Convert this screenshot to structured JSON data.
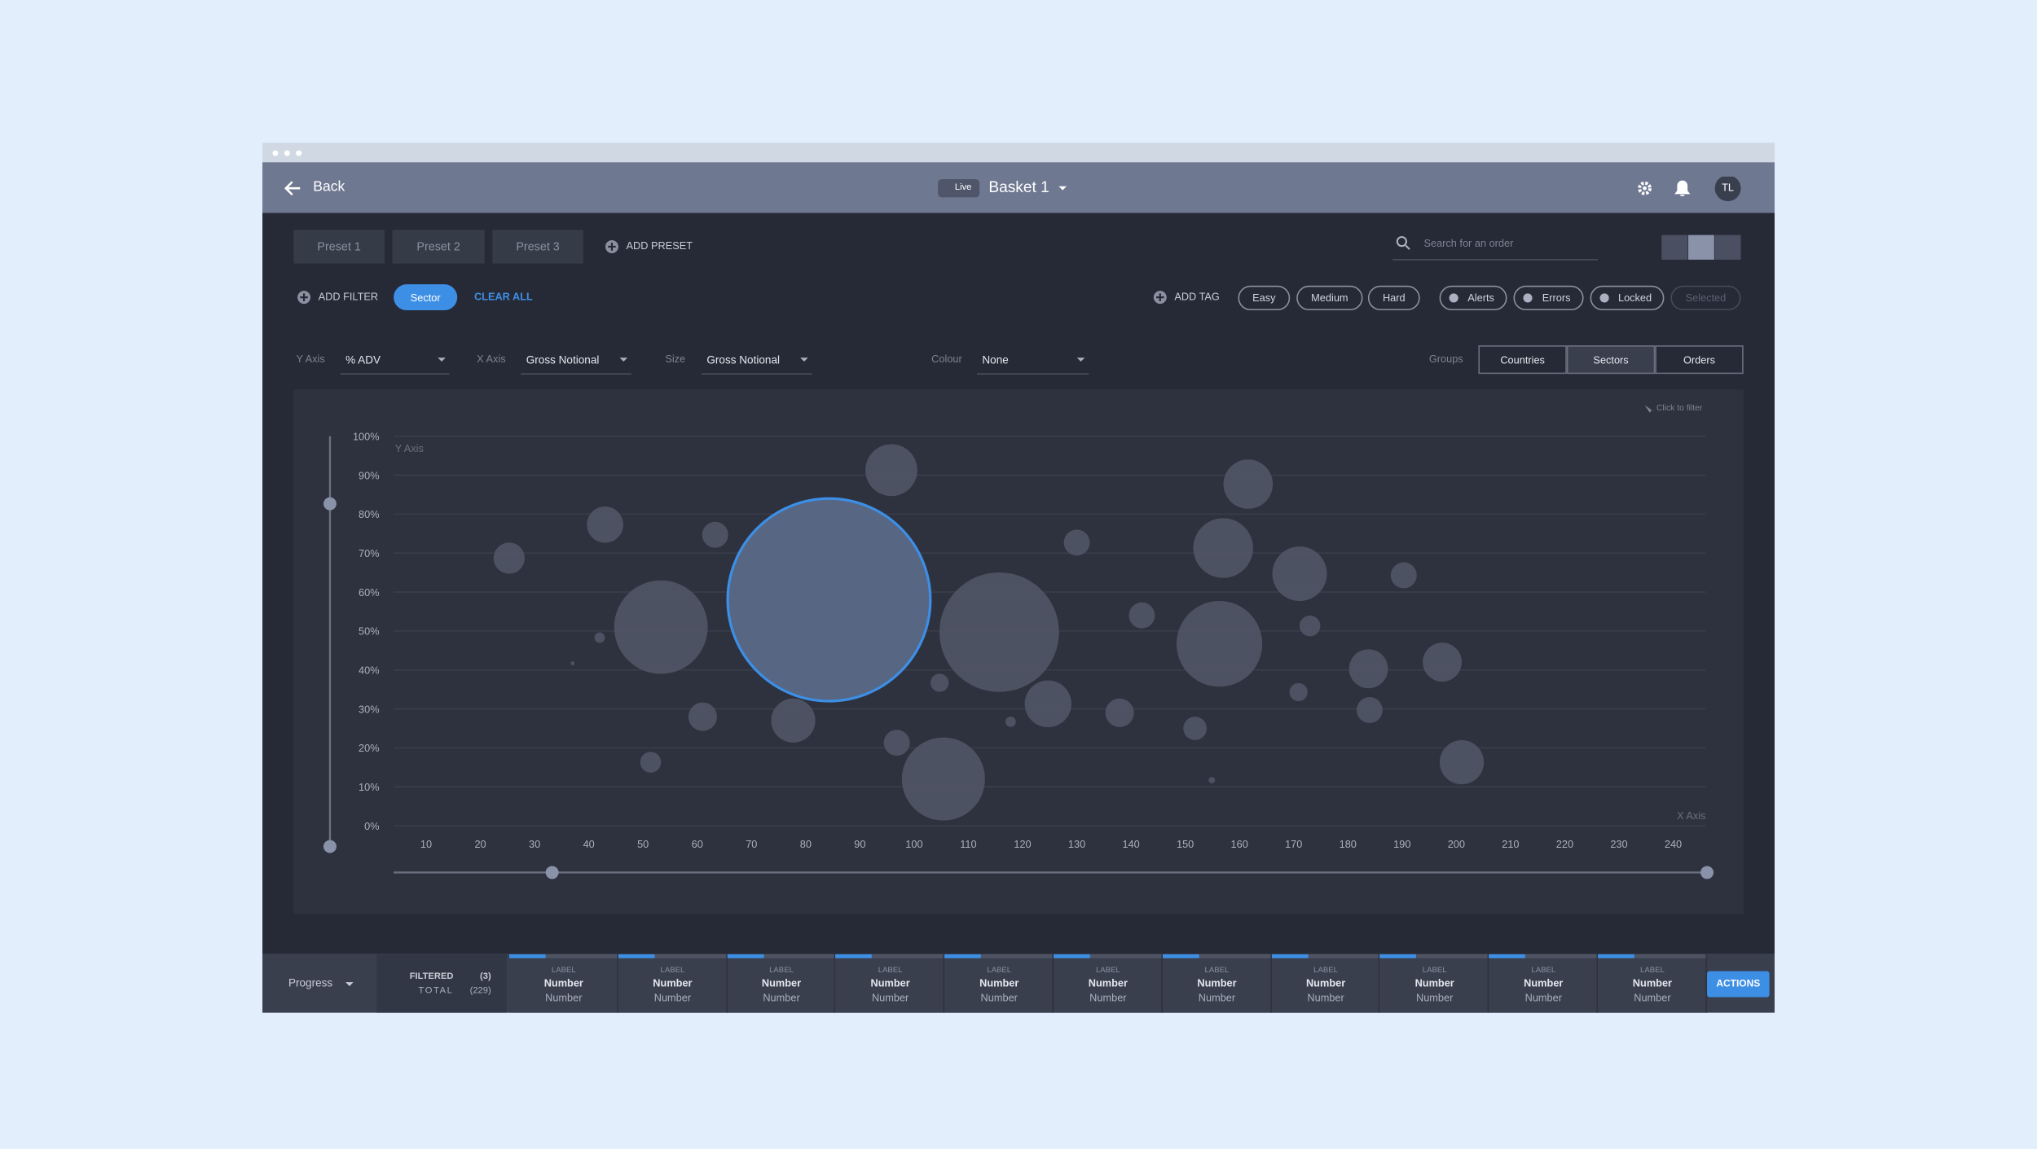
{
  "header": {
    "back": "Back",
    "status": "Live",
    "basket": "Basket 1",
    "avatar": "TL"
  },
  "presets": {
    "items": [
      "Preset 1",
      "Preset 2",
      "Preset 3"
    ],
    "add": "ADD PRESET"
  },
  "search": {
    "placeholder": "Search for an order"
  },
  "filters": {
    "add": "ADD FILTER",
    "active": [
      "Sector"
    ],
    "clear": "CLEAR ALL"
  },
  "tags": {
    "add": "ADD TAG",
    "difficulty": [
      "Easy",
      "Medium",
      "Hard"
    ],
    "status": [
      "Alerts",
      "Errors",
      "Locked",
      "Selected"
    ]
  },
  "axes_controls": [
    {
      "label": "Y Axis",
      "value": "% ADV"
    },
    {
      "label": "X Axis",
      "value": "Gross Notional"
    },
    {
      "label": "Size",
      "value": "Gross Notional"
    },
    {
      "label": "Colour",
      "value": "None"
    }
  ],
  "groups": {
    "label": "Groups",
    "items": [
      "Countries",
      "Sectors",
      "Orders"
    ]
  },
  "chart_data": {
    "type": "scatter",
    "hint": "Click to filter",
    "y_label": "Y Axis",
    "x_label": "X Axis",
    "x": [
      25.3,
      37,
      42,
      43,
      51.4,
      53.3,
      61,
      63.3,
      77.7,
      84.3,
      95.8,
      96.8,
      104.7,
      105.4,
      115.7,
      117.8,
      124.7,
      130,
      137.9,
      142,
      151.8,
      154.9,
      156.3,
      157,
      161.6,
      170.9,
      171.1,
      173,
      183.8,
      184,
      190.3,
      197.4,
      201
    ],
    "y": [
      68.7,
      41.7,
      48.3,
      77.3,
      16.3,
      51,
      28,
      74.7,
      27,
      58,
      91.3,
      21.3,
      36.7,
      12,
      49.7,
      26.7,
      31.3,
      72.7,
      29,
      54,
      25,
      11.7,
      46.7,
      71.3,
      87.7,
      34.3,
      64.7,
      51.3,
      40.3,
      29.7,
      64.3,
      42,
      16.3
    ],
    "sizes": [
      12,
      1.5,
      4,
      14,
      8,
      36,
      11,
      10,
      17,
      78,
      20,
      10,
      7,
      32,
      46,
      4,
      18,
      10,
      11,
      10,
      9,
      2.5,
      33,
      23,
      19,
      7,
      21,
      8,
      15,
      10,
      10,
      15,
      17
    ],
    "color": "#4f5465",
    "highlight": 9,
    "highlight_color": "#566683",
    "highlight_stroke": "#3d8fe6",
    "xlim": [
      4,
      246
    ],
    "ylim": [
      0,
      100
    ],
    "xticks": [
      10,
      20,
      30,
      40,
      50,
      60,
      70,
      80,
      90,
      100,
      110,
      120,
      130,
      140,
      150,
      160,
      170,
      180,
      190,
      200,
      210,
      220,
      230,
      240
    ],
    "yticks": [
      {
        "value": 0,
        "label": "0%"
      },
      {
        "value": 10,
        "label": "10%"
      },
      {
        "value": 20,
        "label": "20%"
      },
      {
        "value": 30,
        "label": "30%"
      },
      {
        "value": 40,
        "label": "40%"
      },
      {
        "value": 50,
        "label": "50%"
      },
      {
        "value": 60,
        "label": "60%"
      },
      {
        "value": 70,
        "label": "70%"
      },
      {
        "value": 80,
        "label": "80%"
      },
      {
        "value": 90,
        "label": "90%"
      },
      {
        "value": 100,
        "label": "100%"
      }
    ],
    "grid": true
  },
  "footer": {
    "progress": "Progress",
    "filtered": "FILTERED",
    "filtered_count": "(3)",
    "total": "TOTAL",
    "total_count": "(229)",
    "cells": [
      {
        "label": "LABEL",
        "value": "Number",
        "sub": "Number"
      },
      {
        "label": "LABEL",
        "value": "Number",
        "sub": "Number"
      },
      {
        "label": "LABEL",
        "value": "Number",
        "sub": "Number"
      },
      {
        "label": "LABEL",
        "value": "Number",
        "sub": "Number"
      },
      {
        "label": "LABEL",
        "value": "Number",
        "sub": "Number"
      },
      {
        "label": "LABEL",
        "value": "Number",
        "sub": "Number"
      },
      {
        "label": "LABEL",
        "value": "Number",
        "sub": "Number"
      },
      {
        "label": "LABEL",
        "value": "Number",
        "sub": "Number"
      },
      {
        "label": "LABEL",
        "value": "Number",
        "sub": "Number"
      },
      {
        "label": "LABEL",
        "value": "Number",
        "sub": "Number"
      },
      {
        "label": "LABEL",
        "value": "Number",
        "sub": "Number"
      }
    ],
    "actions": "ACTIONS"
  }
}
